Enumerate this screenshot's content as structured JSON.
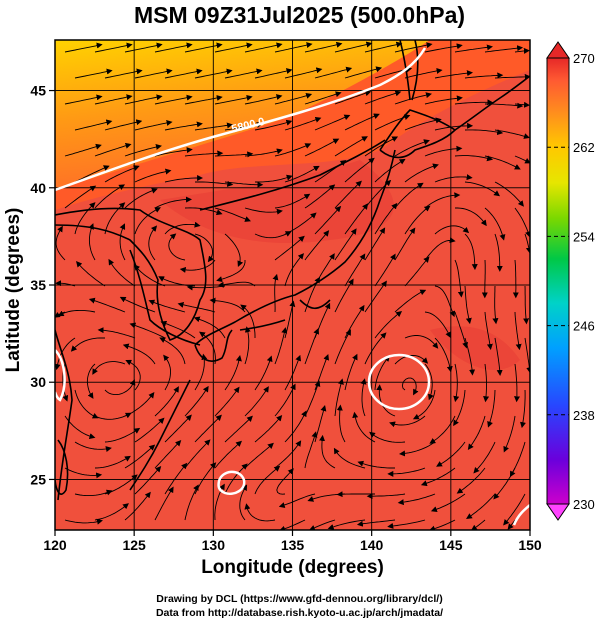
{
  "title": "MSM 09Z31Jul2025 (500.0hPa)",
  "x_axis": {
    "label": "Longitude (degrees)",
    "range": [
      120,
      150
    ],
    "ticks": [
      "120",
      "125",
      "130",
      "135",
      "140",
      "145",
      "150"
    ]
  },
  "y_axis": {
    "label": "Latitude  (degrees)",
    "range": [
      22.4,
      47.6
    ],
    "ticks": [
      "25",
      "30",
      "35",
      "40",
      "45"
    ]
  },
  "colorbar": {
    "range": [
      230,
      270
    ],
    "labels": [
      "270",
      "262",
      "254",
      "246",
      "238",
      "230"
    ],
    "colors": [
      "#cc00cc",
      "#4b00e0",
      "#1e3cff",
      "#00a0ff",
      "#00d4c8",
      "#00c850",
      "#6ed800",
      "#d2e600",
      "#ffd200",
      "#ffa000",
      "#ff6e32",
      "#ff4632",
      "#e61e1e"
    ]
  },
  "map": {
    "field": "temperature",
    "contour_label": "5800.0",
    "background_color": "#f0503c",
    "warm_north_color": "#ffb400"
  },
  "credits": {
    "line1": "Drawing by DCL (https://www.gfd-dennou.org/library/dcl/)",
    "line2": "Data from http://database.rish.kyoto-u.ac.jp/arch/jmadata/"
  }
}
